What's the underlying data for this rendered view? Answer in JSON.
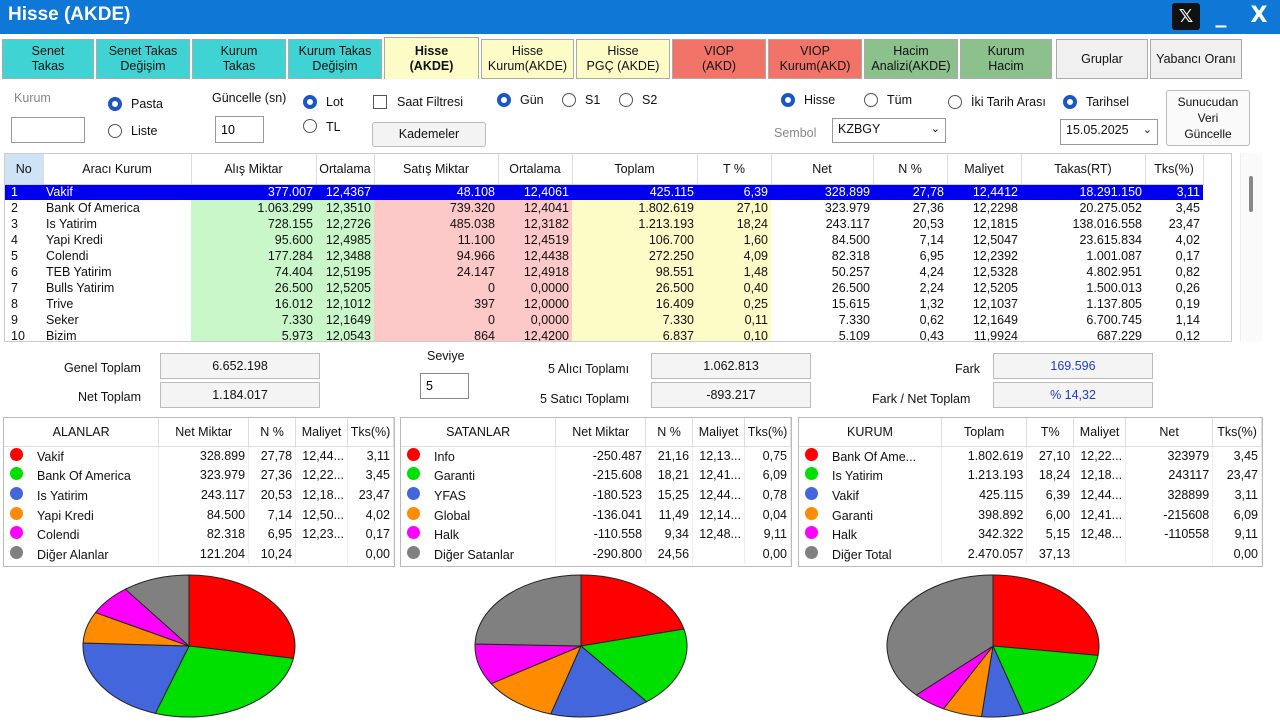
{
  "window": {
    "title": "Hisse (AKDE)",
    "x_label": "𝕏",
    "min_label": "_",
    "close_label": "X"
  },
  "tabs": [
    {
      "label": "Senet\nTakas",
      "bg": "#3fd3d3"
    },
    {
      "label": "Senet Takas\nDeğişim",
      "bg": "#3fd3d3"
    },
    {
      "label": "Kurum\nTakas",
      "bg": "#3fd3d3"
    },
    {
      "label": "Kurum Takas\nDeğişim",
      "bg": "#3fd3d3"
    },
    {
      "label": "Hisse\n(AKDE)",
      "bg": "#fdfbc6",
      "active": true
    },
    {
      "label": "Hisse\nKurum(AKDE)",
      "bg": "#fdfbc6"
    },
    {
      "label": "Hisse\nPGÇ (AKDE)",
      "bg": "#fdfbc6"
    },
    {
      "label": "VIOP\n(AKD)",
      "bg": "#f27468"
    },
    {
      "label": "VIOP\nKurum(AKD)",
      "bg": "#f27468"
    },
    {
      "label": "Hacim\nAnalizi(AKDE)",
      "bg": "#8cc08c"
    },
    {
      "label": "Kurum\nHacim",
      "bg": "#8cc08c"
    },
    {
      "label": "Gruplar",
      "bg": "#f0f0f0"
    },
    {
      "label": "Yabancı Oranı",
      "bg": "#f0f0f0"
    }
  ],
  "controls": {
    "kurum_label": "Kurum",
    "kurum_value": "",
    "pasta": "Pasta",
    "liste": "Liste",
    "guncelle_label": "Güncelle (sn)",
    "guncelle_value": "10",
    "lot": "Lot",
    "tl": "TL",
    "saat_filtresi": "Saat Filtresi",
    "kademeler": "Kademeler",
    "gun": "Gün",
    "s1": "S1",
    "s2": "S2",
    "hisse": "Hisse",
    "tum": "Tüm",
    "sembol_label": "Sembol",
    "sembol_value": "KZBGY",
    "iki_tarih": "İki Tarih Arası",
    "tarihsel": "Tarihsel",
    "tarih_value": "15.05.2025",
    "sunucudan": "Sunucudan\nVeri\nGüncelle"
  },
  "grid": {
    "headers": [
      "No",
      "Aracı Kurum",
      "Alış Miktar",
      "Ortalama",
      "Satış Miktar",
      "Ortalama",
      "Toplam",
      "T %",
      "Net",
      "N %",
      "Maliyet",
      "Takas(RT)",
      "Tks(%)"
    ],
    "rows": [
      [
        "1",
        "Vakif",
        "377.007",
        "12,4367",
        "48.108",
        "12,4061",
        "425.115",
        "6,39",
        "328.899",
        "27,78",
        "12,4412",
        "18.291.150",
        "3,11"
      ],
      [
        "2",
        "Bank Of America",
        "1.063.299",
        "12,3510",
        "739.320",
        "12,4041",
        "1.802.619",
        "27,10",
        "323.979",
        "27,36",
        "12,2298",
        "20.275.052",
        "3,45"
      ],
      [
        "3",
        "Is Yatirim",
        "728.155",
        "12,2726",
        "485.038",
        "12,3182",
        "1.213.193",
        "18,24",
        "243.117",
        "20,53",
        "12,1815",
        "138.016.558",
        "23,47"
      ],
      [
        "4",
        "Yapi Kredi",
        "95.600",
        "12,4985",
        "11.100",
        "12,4519",
        "106.700",
        "1,60",
        "84.500",
        "7,14",
        "12,5047",
        "23.615.834",
        "4,02"
      ],
      [
        "5",
        "Colendi",
        "177.284",
        "12,3488",
        "94.966",
        "12,4438",
        "272.250",
        "4,09",
        "82.318",
        "6,95",
        "12,2392",
        "1.001.087",
        "0,17"
      ],
      [
        "6",
        "TEB Yatirim",
        "74.404",
        "12,5195",
        "24.147",
        "12,4918",
        "98.551",
        "1,48",
        "50.257",
        "4,24",
        "12,5328",
        "4.802.951",
        "0,82"
      ],
      [
        "7",
        "Bulls Yatirim",
        "26.500",
        "12,5205",
        "0",
        "0,0000",
        "26.500",
        "0,40",
        "26.500",
        "2,24",
        "12,5205",
        "1.500.013",
        "0,26"
      ],
      [
        "8",
        "Trive",
        "16.012",
        "12,1012",
        "397",
        "12,0000",
        "16.409",
        "0,25",
        "15.615",
        "1,32",
        "12,1037",
        "1.137.805",
        "0,19"
      ],
      [
        "9",
        "Seker",
        "7.330",
        "12,1649",
        "0",
        "0,0000",
        "7.330",
        "0,11",
        "7.330",
        "0,62",
        "12,1649",
        "6.700.745",
        "1,14"
      ],
      [
        "10",
        "Bizim",
        "5.973",
        "12,0543",
        "864",
        "12,4200",
        "6.837",
        "0,10",
        "5.109",
        "0,43",
        "11,9924",
        "687.229",
        "0,12"
      ]
    ]
  },
  "summary": {
    "genel_toplam_label": "Genel Toplam",
    "genel_toplam": "6.652.198",
    "net_toplam_label": "Net Toplam",
    "net_toplam": "1.184.017",
    "seviye_label": "Seviye",
    "seviye": "5",
    "alici_label": "5  Alıcı Toplamı",
    "alici": "1.062.813",
    "satici_label": "5  Satıcı Toplamı",
    "satici": "-893.217",
    "fark_label": "Fark",
    "fark": "169.596",
    "fark_net_label": "Fark / Net Toplam",
    "fark_net": "% 14,32"
  },
  "colors": [
    "#ff0000",
    "#00e000",
    "#4466dd",
    "#ff8c00",
    "#ff00ff",
    "#808080"
  ],
  "alanlar": {
    "headers": [
      "ALANLAR",
      "Net Miktar",
      "N %",
      "Maliyet",
      "Tks(%)"
    ],
    "rows": [
      [
        "Vakif",
        "328.899",
        "27,78",
        "12,44...",
        "3,11"
      ],
      [
        "Bank Of America",
        "323.979",
        "27,36",
        "12,22...",
        "3,45"
      ],
      [
        "Is Yatirim",
        "243.117",
        "20,53",
        "12,18...",
        "23,47"
      ],
      [
        "Yapi Kredi",
        "84.500",
        "7,14",
        "12,50...",
        "4,02"
      ],
      [
        "Colendi",
        "82.318",
        "6,95",
        "12,23...",
        "0,17"
      ],
      [
        "Diğer Alanlar",
        "121.204",
        "10,24",
        "",
        "0,00"
      ]
    ],
    "pie": [
      27.78,
      27.36,
      20.53,
      7.14,
      6.95,
      10.24
    ]
  },
  "satanlar": {
    "headers": [
      "SATANLAR",
      "Net Miktar",
      "N %",
      "Maliyet",
      "Tks(%)"
    ],
    "rows": [
      [
        "Info",
        "-250.487",
        "21,16",
        "12,13...",
        "0,75"
      ],
      [
        "Garanti",
        "-215.608",
        "18,21",
        "12,41...",
        "6,09"
      ],
      [
        "YFAS",
        "-180.523",
        "15,25",
        "12,44...",
        "0,78"
      ],
      [
        "Global",
        "-136.041",
        "11,49",
        "12,14...",
        "0,04"
      ],
      [
        "Halk",
        "-110.558",
        "9,34",
        "12,48...",
        "9,11"
      ],
      [
        "Diğer Satanlar",
        "-290.800",
        "24,56",
        "",
        "0,00"
      ]
    ],
    "pie": [
      21.16,
      18.21,
      15.25,
      11.49,
      9.34,
      24.56
    ]
  },
  "kurum": {
    "headers": [
      "KURUM",
      "Toplam",
      "T%",
      "Maliyet",
      "Net",
      "Tks(%)"
    ],
    "rows": [
      [
        "Bank Of Ame...",
        "1.802.619",
        "27,10",
        "12,22...",
        "323979",
        "3,45"
      ],
      [
        "Is Yatirim",
        "1.213.193",
        "18,24",
        "12,18...",
        "243117",
        "23,47"
      ],
      [
        "Vakif",
        "425.115",
        "6,39",
        "12,44...",
        "328899",
        "3,11"
      ],
      [
        "Garanti",
        "398.892",
        "6,00",
        "12,41...",
        "-215608",
        "6,09"
      ],
      [
        "Halk",
        "342.322",
        "5,15",
        "12,48...",
        "-110558",
        "9,11"
      ],
      [
        "Diğer Total",
        "2.470.057",
        "37,13",
        "",
        "",
        "0,00"
      ]
    ],
    "pie": [
      27.1,
      18.24,
      6.39,
      6.0,
      5.15,
      37.13
    ]
  }
}
